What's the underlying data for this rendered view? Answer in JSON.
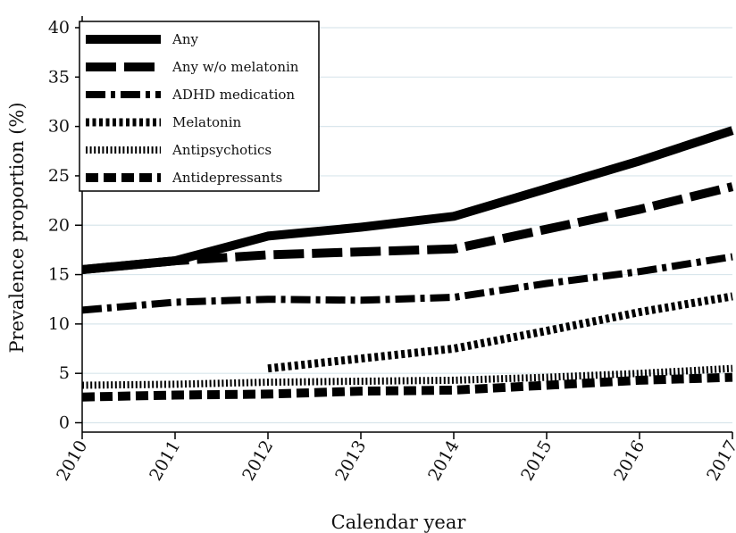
{
  "chart_data": {
    "type": "line",
    "title": "",
    "xlabel": "Calendar year",
    "ylabel": "Prevalence proportion (%)",
    "xlim": [
      2010,
      2017
    ],
    "ylim": [
      0,
      40
    ],
    "x_ticks": [
      "2010",
      "2011",
      "2012",
      "2013",
      "2014",
      "2015",
      "2016",
      "2017"
    ],
    "y_ticks": [
      "0",
      "5",
      "10",
      "15",
      "20",
      "25",
      "30",
      "35",
      "40"
    ],
    "grid": true,
    "legend_position": "top-left",
    "series": [
      {
        "name": "Any",
        "style": "solid",
        "x": [
          2010,
          2011,
          2012,
          2013,
          2014,
          2015,
          2016,
          2017
        ],
        "values": [
          15.5,
          16.4,
          18.9,
          19.8,
          20.9,
          23.7,
          26.5,
          29.6
        ]
      },
      {
        "name": "Any w/o melatonin",
        "style": "long-dash",
        "x": [
          2010,
          2011,
          2012,
          2013,
          2014,
          2015,
          2016,
          2017
        ],
        "values": [
          15.5,
          16.4,
          17.0,
          17.3,
          17.6,
          19.6,
          21.6,
          23.9
        ]
      },
      {
        "name": "ADHD medication",
        "style": "dash-dot",
        "x": [
          2010,
          2011,
          2012,
          2013,
          2014,
          2015,
          2016,
          2017
        ],
        "values": [
          11.4,
          12.2,
          12.5,
          12.4,
          12.7,
          14.1,
          15.3,
          16.8
        ]
      },
      {
        "name": "Melatonin",
        "style": "dotted",
        "x": [
          2012,
          2013,
          2014,
          2015,
          2016,
          2017
        ],
        "values": [
          5.5,
          6.5,
          7.5,
          9.3,
          11.2,
          12.8
        ]
      },
      {
        "name": "Antipsychotics",
        "style": "fine-dotted",
        "x": [
          2010,
          2011,
          2012,
          2013,
          2014,
          2015,
          2016,
          2017
        ],
        "values": [
          3.8,
          3.9,
          4.1,
          4.2,
          4.3,
          4.6,
          5.0,
          5.5
        ]
      },
      {
        "name": "Antidepressants",
        "style": "short-dash",
        "x": [
          2010,
          2011,
          2012,
          2013,
          2014,
          2015,
          2016,
          2017
        ],
        "values": [
          2.6,
          2.8,
          2.9,
          3.2,
          3.3,
          3.8,
          4.3,
          4.6
        ]
      }
    ]
  }
}
